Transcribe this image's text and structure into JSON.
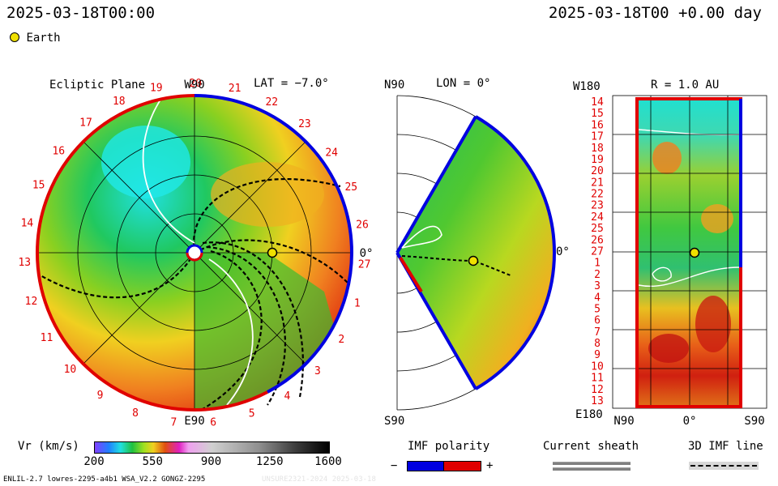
{
  "header": {
    "datetime_left": "2025-03-18T00:00",
    "datetime_right": "2025-03-18T00 +0.00 day",
    "legend_earth": "Earth"
  },
  "ecliptic": {
    "title": "Ecliptic Plane",
    "lat": "LAT = −7.0°",
    "top_label": "W90",
    "bottom_label": "E90",
    "right_label": "0°",
    "carrington_labels": [
      "19",
      "20",
      "21",
      "22",
      "23",
      "24",
      "25",
      "26",
      "27",
      "1",
      "2",
      "3",
      "4",
      "5",
      "6",
      "7",
      "8",
      "9",
      "10",
      "11",
      "12",
      "13",
      "14",
      "15",
      "16",
      "17",
      "18"
    ]
  },
  "meridional": {
    "top_label": "N90",
    "lon": "LON = 0°",
    "bottom_label": "S90",
    "right_label": "0°"
  },
  "radial": {
    "title": "R = 1.0 AU",
    "top_left": "W180",
    "bottom_left": "E180",
    "x_labels": [
      "N90",
      "0°",
      "S90"
    ],
    "y_labels": [
      "14",
      "15",
      "16",
      "17",
      "18",
      "19",
      "20",
      "21",
      "22",
      "23",
      "24",
      "25",
      "26",
      "27",
      "1",
      "2",
      "3",
      "4",
      "5",
      "6",
      "7",
      "8",
      "9",
      "10",
      "11",
      "12",
      "13"
    ]
  },
  "colorbar": {
    "label": "Vr (km/s)",
    "ticks": [
      "200",
      "550",
      "900",
      "1250",
      "1600"
    ],
    "range": [
      200,
      1600
    ]
  },
  "legends": {
    "imf_title": "IMF polarity",
    "imf_minus": "−",
    "imf_plus": "+",
    "sheath_title": "Current sheath",
    "imf3d_title": "3D IMF line"
  },
  "footer": {
    "left": "ENLIL-2.7 lowres-2295-a4b1 WSA_V2.2 GONGZ-2295",
    "right": "UNSURE2321-2024 2025-03-18"
  },
  "colors": {
    "positive_polarity": "#e00000",
    "negative_polarity": "#0000e0",
    "earth": "#f0e000",
    "label_red": "#e00000"
  }
}
